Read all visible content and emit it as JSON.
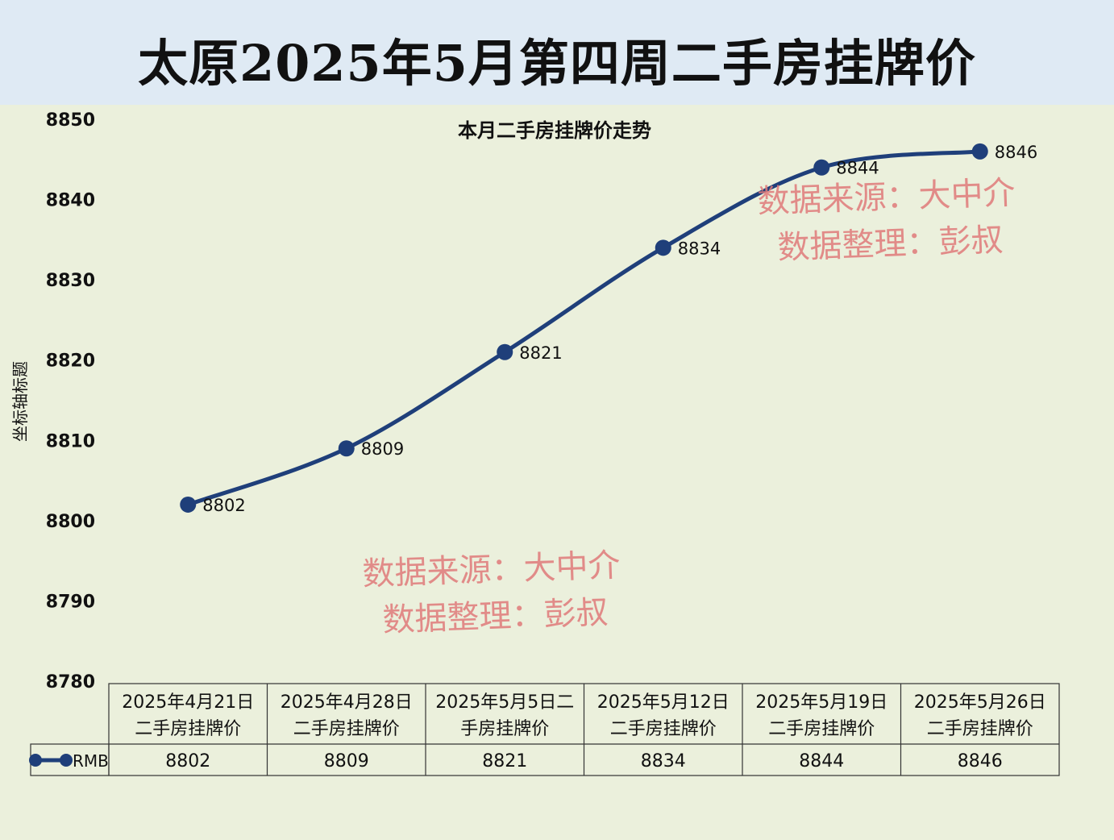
{
  "page": {
    "title": "太原2025年5月第四周二手房挂牌价"
  },
  "chart_data": {
    "type": "line",
    "title": "本月二手房挂牌价走势",
    "ylabel": "坐标轴标题",
    "xlabel": "",
    "ylim": [
      8780,
      8850
    ],
    "yticks": [
      8780,
      8790,
      8800,
      8810,
      8820,
      8830,
      8840,
      8850
    ],
    "categories": [
      [
        "2025年4月21日",
        "二手房挂牌价"
      ],
      [
        "2025年4月28日",
        "二手房挂牌价"
      ],
      [
        "2025年5月5日二",
        "手房挂牌价"
      ],
      [
        "2025年5月12日",
        "二手房挂牌价"
      ],
      [
        "2025年5月19日",
        "二手房挂牌价"
      ],
      [
        "2025年5月26日",
        "二手房挂牌价"
      ]
    ],
    "series": [
      {
        "name": "RMB",
        "values": [
          8802,
          8809,
          8821,
          8834,
          8844,
          8846
        ],
        "color": "#1f3f7a"
      }
    ],
    "data_table": true
  },
  "watermarks": [
    {
      "lines": [
        "数据来源：大中介",
        "数据整理：彭叔"
      ],
      "color": "#e07a7a"
    },
    {
      "lines": [
        "数据来源：大中介",
        "数据整理：彭叔"
      ],
      "color": "#e07a7a"
    }
  ]
}
